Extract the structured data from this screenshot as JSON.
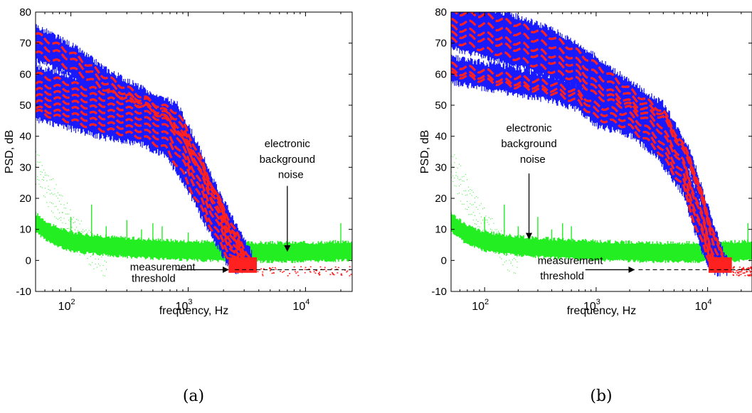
{
  "chart_data": [
    {
      "type": "line",
      "panel_label": "(a)",
      "xlabel": "frequency, Hz",
      "ylabel": "PSD, dB",
      "xscale": "log",
      "xlim": [
        50,
        25000
      ],
      "ylim": [
        -10,
        80
      ],
      "yticks": [
        -10,
        0,
        10,
        20,
        30,
        40,
        50,
        60,
        70,
        80
      ],
      "xticks": [
        {
          "value": 100,
          "base": "10",
          "exp": "2"
        },
        {
          "value": 1000,
          "base": "10",
          "exp": "3"
        },
        {
          "value": 10000,
          "base": "10",
          "exp": "4"
        }
      ],
      "grid": false,
      "colors": {
        "spectra": "#1a1aff",
        "fit": "#ff2020",
        "noise": "#22ee22"
      },
      "spectra_curves": [
        {
          "x": [
            50,
            100,
            200,
            400,
            700,
            1200,
            2000,
            2800,
            3500
          ],
          "y": [
            73,
            67,
            59,
            53,
            47,
            33,
            17,
            6,
            0
          ]
        },
        {
          "x": [
            50,
            100,
            200,
            400,
            700,
            1000,
            1800,
            2600,
            3300
          ],
          "y": [
            70,
            65,
            57,
            51,
            45,
            36,
            18,
            7,
            0
          ]
        },
        {
          "x": [
            50,
            100,
            200,
            400,
            700,
            1000,
            1700,
            2400,
            3000
          ],
          "y": [
            67,
            62,
            55,
            50,
            45,
            36,
            18,
            7,
            0
          ]
        },
        {
          "x": [
            50,
            100,
            200,
            400,
            800,
            1100,
            1800,
            2600,
            3200
          ],
          "y": [
            60,
            57,
            54,
            52,
            48,
            38,
            20,
            6,
            0
          ]
        },
        {
          "x": [
            50,
            100,
            200,
            400,
            800,
            1100,
            1800,
            2500,
            3100
          ],
          "y": [
            57,
            55,
            52,
            50,
            46,
            36,
            19,
            6,
            0
          ]
        },
        {
          "x": [
            50,
            100,
            200,
            400,
            750,
            1100,
            1700,
            2400,
            3000
          ],
          "y": [
            55,
            53,
            50,
            48,
            44,
            34,
            17,
            5,
            0
          ]
        },
        {
          "x": [
            50,
            100,
            200,
            400,
            750,
            1000,
            1600,
            2300,
            2900
          ],
          "y": [
            53,
            51,
            48,
            46,
            42,
            33,
            17,
            5,
            -1
          ]
        },
        {
          "x": [
            50,
            100,
            200,
            400,
            700,
            1000,
            1600,
            2300,
            2800
          ],
          "y": [
            51,
            49,
            46,
            44,
            40,
            31,
            15,
            4,
            -1
          ]
        },
        {
          "x": [
            50,
            100,
            200,
            400,
            700,
            1000,
            1500,
            2200,
            2700
          ],
          "y": [
            49,
            47,
            44,
            42,
            38,
            29,
            14,
            3,
            -1
          ]
        },
        {
          "x": [
            50,
            100,
            200,
            400,
            650,
            900,
            1500,
            2100,
            2600
          ],
          "y": [
            48,
            45,
            42,
            40,
            36,
            28,
            12,
            2,
            -1
          ]
        }
      ],
      "noise_floor": {
        "x": [
          50,
          70,
          100,
          150,
          300,
          1000,
          3000,
          10000,
          25000
        ],
        "y": [
          12,
          8,
          6,
          5,
          4,
          3,
          2.5,
          2.5,
          3
        ]
      },
      "noise_transient": {
        "x": [
          50,
          70,
          100,
          150,
          200
        ],
        "y": [
          35,
          25,
          15,
          8,
          5
        ]
      },
      "noise_spikes": [
        {
          "x": 100,
          "y": 14
        },
        {
          "x": 150,
          "y": 18
        },
        {
          "x": 200,
          "y": 11
        },
        {
          "x": 300,
          "y": 13
        },
        {
          "x": 400,
          "y": 10
        },
        {
          "x": 500,
          "y": 12
        },
        {
          "x": 600,
          "y": 11
        },
        {
          "x": 1000,
          "y": 9
        },
        {
          "x": 20000,
          "y": 12
        }
      ],
      "threshold_y": -3,
      "threshold_x": [
        2500,
        25000
      ],
      "annotations": [
        {
          "key": "noise_line1",
          "text": "electronic",
          "x": 7000,
          "y": 36.5,
          "anchor": "middle"
        },
        {
          "key": "noise_line2",
          "text": "background",
          "x": 7000,
          "y": 31.5,
          "anchor": "middle"
        },
        {
          "key": "noise_line3",
          "text": "noise",
          "x": 7500,
          "y": 26.5,
          "anchor": "middle"
        },
        {
          "key": "threshold_line1",
          "text": "measurement",
          "x": 1150,
          "y": -3.2,
          "anchor": "end"
        },
        {
          "key": "threshold_line2",
          "text": "threshold",
          "x": 780,
          "y": -6.9,
          "anchor": "end"
        }
      ],
      "arrows": [
        {
          "from": [
            7000,
            24
          ],
          "to": [
            7000,
            3
          ]
        },
        {
          "from": [
            800,
            -3
          ],
          "to": [
            2200,
            -3
          ]
        }
      ]
    },
    {
      "type": "line",
      "panel_label": "(b)",
      "xlabel": "frequency, Hz",
      "ylabel": "PSD, dB",
      "xscale": "log",
      "xlim": [
        50,
        25000
      ],
      "ylim": [
        -10,
        80
      ],
      "yticks": [
        -10,
        0,
        10,
        20,
        30,
        40,
        50,
        60,
        70,
        80
      ],
      "xticks": [
        {
          "value": 100,
          "base": "10",
          "exp": "2"
        },
        {
          "value": 1000,
          "base": "10",
          "exp": "3"
        },
        {
          "value": 10000,
          "base": "10",
          "exp": "4"
        }
      ],
      "grid": false,
      "colors": {
        "spectra": "#1a1aff",
        "fit": "#ff2020",
        "noise": "#22ee22"
      },
      "spectra_curves": [
        {
          "x": [
            50,
            100,
            200,
            400,
            700,
            1000,
            2000,
            4000,
            7000,
            10000,
            13000,
            15000
          ],
          "y": [
            80,
            79,
            76,
            72,
            67,
            63,
            55,
            48,
            33,
            15,
            3,
            -2
          ]
        },
        {
          "x": [
            50,
            100,
            200,
            400,
            700,
            1000,
            2000,
            4000,
            7000,
            10000,
            13000,
            15000
          ],
          "y": [
            77,
            76,
            73,
            69,
            64,
            60,
            53,
            47,
            32,
            14,
            2,
            -2
          ]
        },
        {
          "x": [
            50,
            100,
            200,
            400,
            700,
            1000,
            2000,
            4000,
            7000,
            10000,
            12000,
            14000
          ],
          "y": [
            75,
            73,
            70,
            66,
            62,
            57,
            51,
            46,
            31,
            13,
            2,
            -2
          ]
        },
        {
          "x": [
            50,
            100,
            200,
            400,
            700,
            1000,
            2000,
            3500,
            6000,
            9000,
            11000,
            13000
          ],
          "y": [
            73,
            71,
            68,
            64,
            60,
            55,
            50,
            45,
            32,
            14,
            3,
            -2
          ]
        },
        {
          "x": [
            50,
            100,
            200,
            400,
            700,
            1000,
            2000,
            3500,
            6000,
            9000,
            11000,
            13000
          ],
          "y": [
            71,
            68,
            65,
            61,
            58,
            53,
            49,
            43,
            31,
            13,
            2,
            -2
          ]
        },
        {
          "x": [
            50,
            100,
            200,
            400,
            700,
            1000,
            2000,
            3500,
            6000,
            8500,
            10500,
            12500
          ],
          "y": [
            63,
            61,
            59,
            57,
            54,
            50,
            47,
            40,
            28,
            12,
            2,
            -2
          ]
        },
        {
          "x": [
            50,
            100,
            200,
            400,
            700,
            1000,
            2000,
            3500,
            6000,
            8500,
            10500,
            12500
          ],
          "y": [
            61,
            59,
            57,
            55,
            53,
            48,
            45,
            38,
            26,
            11,
            1,
            -2
          ]
        },
        {
          "x": [
            50,
            100,
            200,
            400,
            700,
            1000,
            2000,
            3500,
            6000,
            8000,
            10000,
            12000
          ],
          "y": [
            60,
            58,
            56,
            54,
            51,
            46,
            43,
            36,
            24,
            10,
            1,
            -2
          ]
        }
      ],
      "noise_floor": {
        "x": [
          50,
          70,
          100,
          150,
          300,
          1000,
          3000,
          10000,
          25000
        ],
        "y": [
          12,
          8,
          6,
          5,
          4,
          3,
          2.5,
          2.5,
          3
        ]
      },
      "noise_transient": {
        "x": [
          50,
          70,
          100,
          150,
          200
        ],
        "y": [
          35,
          25,
          15,
          8,
          5
        ]
      },
      "noise_spikes": [
        {
          "x": 100,
          "y": 14
        },
        {
          "x": 150,
          "y": 18
        },
        {
          "x": 200,
          "y": 11
        },
        {
          "x": 300,
          "y": 14
        },
        {
          "x": 400,
          "y": 10
        },
        {
          "x": 500,
          "y": 12
        },
        {
          "x": 600,
          "y": 11
        },
        {
          "x": 23000,
          "y": 12
        }
      ],
      "threshold_y": -3,
      "threshold_x": [
        2400,
        25000
      ],
      "annotations": [
        {
          "key": "noise_line1",
          "text": "electronic",
          "x": 250,
          "y": 41.5,
          "anchor": "middle"
        },
        {
          "key": "noise_line2",
          "text": "background",
          "x": 250,
          "y": 36.5,
          "anchor": "middle"
        },
        {
          "key": "noise_line3",
          "text": "noise",
          "x": 270,
          "y": 31.5,
          "anchor": "middle"
        },
        {
          "key": "threshold_line1",
          "text": "measurement",
          "x": 1150,
          "y": -1.2,
          "anchor": "end"
        },
        {
          "key": "threshold_line2",
          "text": "threshold",
          "x": 780,
          "y": -6.1,
          "anchor": "end"
        }
      ],
      "arrows": [
        {
          "from": [
            250,
            28
          ],
          "to": [
            250,
            7
          ]
        },
        {
          "from": [
            800,
            -3
          ],
          "to": [
            2200,
            -3
          ]
        }
      ]
    }
  ]
}
